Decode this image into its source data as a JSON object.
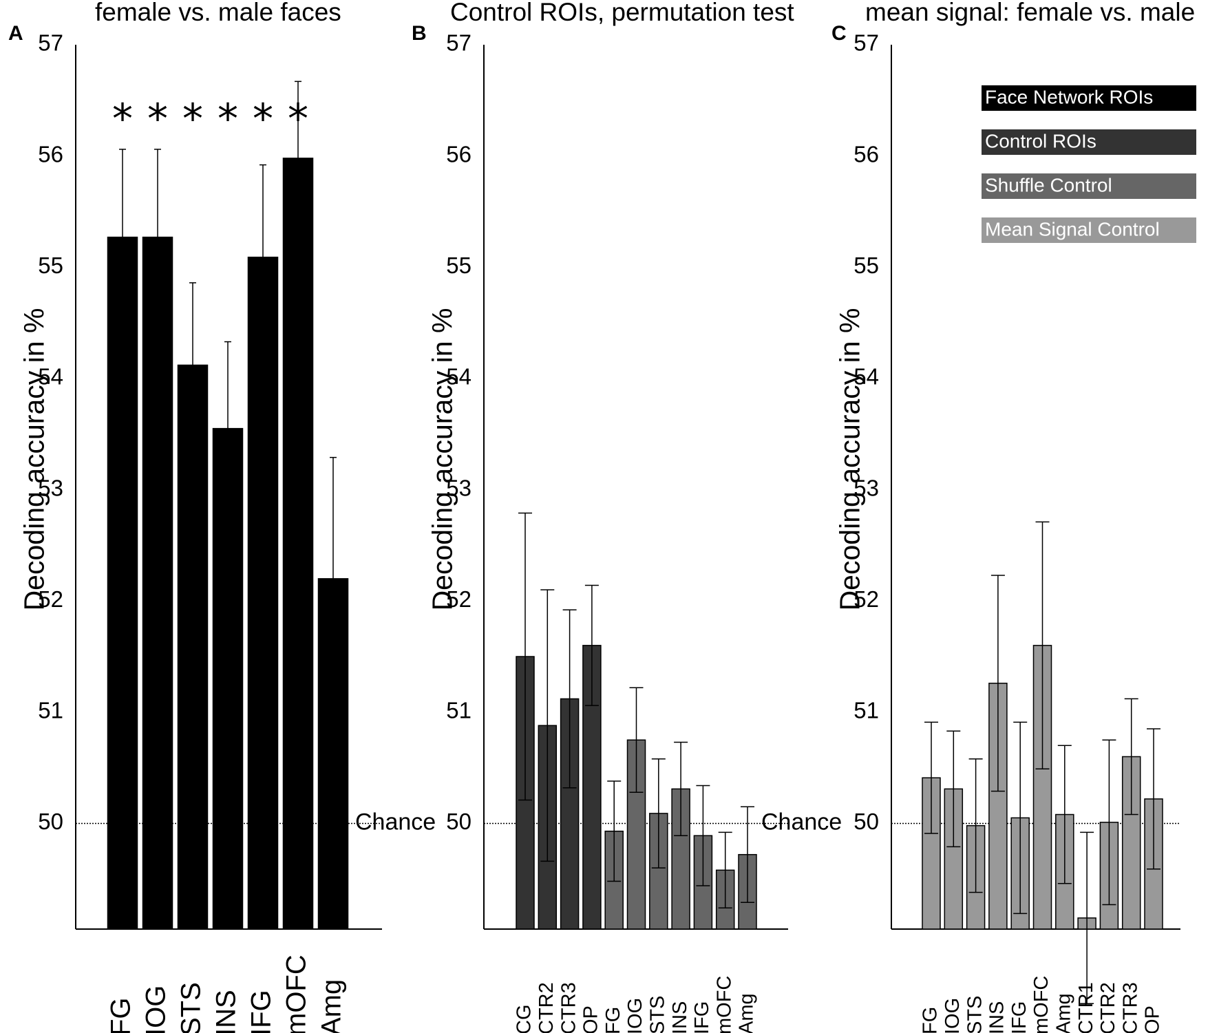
{
  "colors": {
    "face": "#000000",
    "control": "#333333",
    "shuffle": "#666666",
    "mean": "#999999"
  },
  "chart_data": [
    {
      "panel": "A",
      "type": "bar",
      "title": "female vs. male faces",
      "ylabel": "Decoding accuracy in %",
      "xlabel": "",
      "ylim": [
        49.05,
        57
      ],
      "yticks": [
        50,
        51,
        52,
        53,
        54,
        55,
        56,
        57
      ],
      "chance": 50,
      "chance_label": "Chance",
      "categories": [
        "FG",
        "IOG",
        "STS",
        "INS",
        "IFG",
        "mOFC",
        "Amg"
      ],
      "values": [
        55.27,
        55.27,
        54.12,
        53.55,
        55.09,
        55.98,
        52.2
      ],
      "errors": [
        0.79,
        0.79,
        0.74,
        0.78,
        0.83,
        0.69,
        1.09
      ],
      "groups": [
        "face",
        "face",
        "face",
        "face",
        "face",
        "face",
        "face"
      ],
      "significance": [
        "*",
        "*",
        "*",
        "*",
        "*",
        "*",
        ""
      ]
    },
    {
      "panel": "B",
      "type": "bar",
      "title": "Control ROIs, permutation test",
      "ylabel": "Decoding accuracy in %",
      "xlabel": "",
      "ylim": [
        49.05,
        57
      ],
      "yticks": [
        50,
        51,
        52,
        53,
        54,
        55,
        56,
        57
      ],
      "chance": 50,
      "chance_label": "Chance",
      "categories": [
        "CG",
        "CTR2",
        "CTR3",
        "OP",
        "FG",
        "IOG",
        "STS",
        "INS",
        "IFG",
        "mOFC",
        "Amg"
      ],
      "values": [
        51.5,
        50.88,
        51.12,
        51.6,
        49.93,
        50.75,
        50.09,
        50.31,
        49.89,
        49.58,
        49.72
      ],
      "errors": [
        1.29,
        1.22,
        0.8,
        0.54,
        0.45,
        0.47,
        0.49,
        0.42,
        0.45,
        0.34,
        0.43
      ],
      "groups": [
        "control",
        "control",
        "control",
        "control",
        "shuffle",
        "shuffle",
        "shuffle",
        "shuffle",
        "shuffle",
        "shuffle",
        "shuffle"
      ]
    },
    {
      "panel": "C",
      "type": "bar",
      "title": "mean signal: female vs. male",
      "ylabel": "Decoding accuracy in %",
      "xlabel": "",
      "ylim": [
        49.05,
        57
      ],
      "yticks": [
        50,
        51,
        52,
        53,
        54,
        55,
        56,
        57
      ],
      "chance": 50,
      "chance_label": "",
      "categories": [
        "FG",
        "IOG",
        "STS",
        "INS",
        "IFG",
        "mOFC",
        "Amg",
        "CTR1",
        "CTR2",
        "CTR3",
        "OP"
      ],
      "values": [
        50.41,
        50.31,
        49.98,
        51.26,
        50.05,
        51.6,
        50.08,
        49.15,
        50.01,
        50.6,
        50.22
      ],
      "errors": [
        0.5,
        0.52,
        0.6,
        0.97,
        0.86,
        1.11,
        0.62,
        0.77,
        0.74,
        0.52,
        0.63
      ],
      "groups": [
        "mean",
        "mean",
        "mean",
        "mean",
        "mean",
        "mean",
        "mean",
        "mean",
        "mean",
        "mean",
        "mean"
      ]
    }
  ],
  "legend": [
    {
      "label": "Face Network ROIs",
      "group": "face"
    },
    {
      "label": "Control ROIs",
      "group": "control"
    },
    {
      "label": "Shuffle Control",
      "group": "shuffle"
    },
    {
      "label": "Mean Signal Control",
      "group": "mean"
    }
  ]
}
